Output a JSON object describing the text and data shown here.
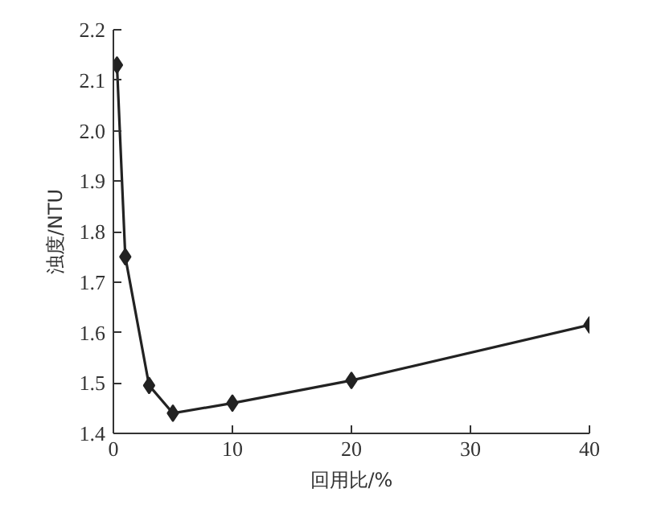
{
  "chart_data": {
    "type": "line",
    "xlabel": "回用比/%",
    "ylabel": "浊度/NTU",
    "x": [
      0.3,
      1,
      3,
      5,
      10,
      20,
      40
    ],
    "series": [
      {
        "color": "#222222",
        "values": [
          2.13,
          1.75,
          1.495,
          1.44,
          1.46,
          1.505,
          1.615
        ]
      }
    ],
    "xlim": [
      0,
      40
    ],
    "ylim": [
      1.4,
      2.2
    ],
    "xticks": [
      0,
      10,
      20,
      30,
      40
    ],
    "yticks": [
      {
        "value": 1.4,
        "label": "1.4"
      },
      {
        "value": 1.5,
        "label": "1.5"
      },
      {
        "value": 1.6,
        "label": "1.6"
      },
      {
        "value": 1.7,
        "label": "1.7"
      },
      {
        "value": 1.8,
        "label": "1.8"
      },
      {
        "value": 1.9,
        "label": "1.9"
      },
      {
        "value": 2.0,
        "label": "2.0"
      },
      {
        "value": 2.1,
        "label": "2.1"
      },
      {
        "value": 2.2,
        "label": "2.2"
      }
    ],
    "marker": "diamond",
    "line_style": "solid",
    "grid": false
  }
}
